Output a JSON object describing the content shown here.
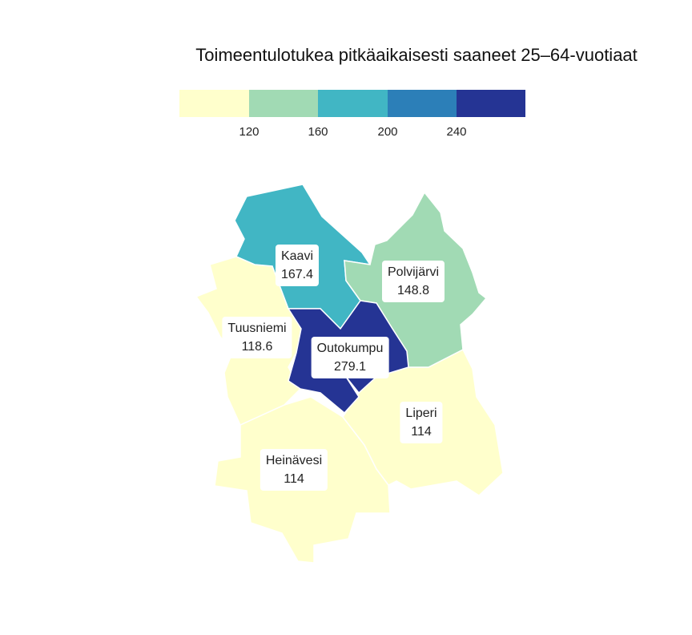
{
  "title": "Toimeentulotukea pitkäaikaisesti saaneet 25–64-vuotiaat",
  "legend": {
    "ticks": [
      "120",
      "160",
      "200",
      "240"
    ],
    "colors": [
      "#ffffcc",
      "#a1dab4",
      "#41b6c4",
      "#2c7fb8",
      "#253494"
    ]
  },
  "regions": [
    {
      "name": "Kaavi",
      "value": "167.4",
      "color": "#41b6c4"
    },
    {
      "name": "Polvijärvi",
      "value": "148.8",
      "color": "#a1dab4"
    },
    {
      "name": "Tuusniemi",
      "value": "118.6",
      "color": "#ffffcc"
    },
    {
      "name": "Outokumpu",
      "value": "279.1",
      "color": "#253494"
    },
    {
      "name": "Liperi",
      "value": "114",
      "color": "#ffffcc"
    },
    {
      "name": "Heinävesi",
      "value": "114",
      "color": "#ffffcc"
    }
  ]
}
